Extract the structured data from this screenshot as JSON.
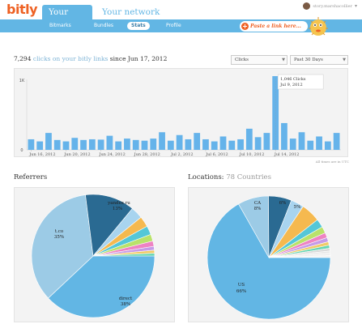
{
  "header": {
    "logo": "bitly",
    "tabs": [
      {
        "label": "Your stuff",
        "active": true
      },
      {
        "label": "Your network",
        "active": false
      }
    ],
    "user": "story.marshacollier"
  },
  "subnav": {
    "items": [
      {
        "label": "Bitmarks",
        "active": false
      },
      {
        "label": "Bundles",
        "active": false
      },
      {
        "label": "Stats",
        "active": true
      },
      {
        "label": "Profile",
        "active": false
      }
    ],
    "paste_label": "Paste a link here..."
  },
  "stats": {
    "count": "7,294",
    "word_clicks": "clicks",
    "mid": "on your bitly links",
    "since_label": "since Jun 17, 2012",
    "metric_select": "Clicks",
    "range_select": "Past 30 Days",
    "timezone_note": "All times are in UTC"
  },
  "colors": {
    "brand_orange": "#ee6123",
    "accent_blue": "#62b6e4",
    "bar_blue": "#65b3ea",
    "panel_bg": "#f3f3f3"
  },
  "chart_data": [
    {
      "type": "bar",
      "title": "",
      "ylabel": "",
      "xlabel": "",
      "ylim": [
        0,
        1000
      ],
      "y_ticks": [
        "0",
        "1K"
      ],
      "x_tick_labels": [
        "Jun 16, 2012",
        "Jun 20, 2012",
        "Jun 24, 2012",
        "Jun 28, 2012",
        "Jul 2, 2012",
        "Jul 6, 2012",
        "Jul 10, 2012",
        "Jul 14, 2012"
      ],
      "values": [
        150,
        120,
        240,
        140,
        120,
        170,
        140,
        150,
        145,
        200,
        120,
        160,
        140,
        130,
        160,
        250,
        130,
        210,
        150,
        240,
        150,
        120,
        190,
        130,
        150,
        300,
        180,
        240,
        1046,
        380,
        160,
        250,
        130,
        190,
        120,
        240
      ],
      "tooltip": {
        "value": "1,046 Clicks",
        "date": "Jul 9, 2012",
        "index": 28
      }
    },
    {
      "type": "pie",
      "title": "Referrers",
      "labels": [
        "direct",
        "t.co",
        "yandex.ru"
      ],
      "label_percents": [
        "38%",
        "35%",
        "13%"
      ],
      "slices": [
        {
          "label": "direct",
          "value": 38,
          "color": "#62b6e4"
        },
        {
          "label": "t.co",
          "value": 35,
          "color": "#9ccbe6"
        },
        {
          "label": "yandex.ru",
          "value": 13,
          "color": "#2a6a92"
        },
        {
          "label": "",
          "value": 3.2,
          "color": "#a8d4ef"
        },
        {
          "label": "",
          "value": 2.8,
          "color": "#f5b94f"
        },
        {
          "label": "",
          "value": 2.3,
          "color": "#54c7d8"
        },
        {
          "label": "",
          "value": 1.8,
          "color": "#b9e26a"
        },
        {
          "label": "",
          "value": 1.4,
          "color": "#ee83c3"
        },
        {
          "label": "",
          "value": 1.0,
          "color": "#c59be8"
        },
        {
          "label": "",
          "value": 0.8,
          "color": "#f0cb69"
        },
        {
          "label": "",
          "value": 0.7,
          "color": "#66d6b3"
        }
      ]
    },
    {
      "type": "pie",
      "title": "Locations:",
      "subtitle": "78 Countries",
      "labels": [
        "US",
        "CA"
      ],
      "label_percents": [
        "66%",
        "8%",
        "6%",
        "5%"
      ],
      "slices": [
        {
          "label": "US",
          "value": 66,
          "color": "#62b6e4"
        },
        {
          "label": "CA",
          "value": 8,
          "color": "#9ccbe6"
        },
        {
          "label": "",
          "value": 6,
          "color": "#2a6a92"
        },
        {
          "label": "",
          "value": 3.4,
          "color": "#a8d4ef"
        },
        {
          "label": "",
          "value": 5,
          "color": "#f5b94f"
        },
        {
          "label": "",
          "value": 2.2,
          "color": "#54c7d8"
        },
        {
          "label": "",
          "value": 1.7,
          "color": "#b9e26a"
        },
        {
          "label": "",
          "value": 1.3,
          "color": "#ee83c3"
        },
        {
          "label": "",
          "value": 1.1,
          "color": "#c59be8"
        },
        {
          "label": "",
          "value": 0.9,
          "color": "#f0cb69"
        },
        {
          "label": "",
          "value": 0.8,
          "color": "#66d6b3"
        },
        {
          "label": "",
          "value": 0.7,
          "color": "#d9d9d9"
        },
        {
          "label": "",
          "value": 0.6,
          "color": "#e8e8e8"
        },
        {
          "label": "",
          "value": 0.6,
          "color": "#eeeeee"
        },
        {
          "label": "",
          "value": 0.5,
          "color": "#f2f2f2"
        }
      ]
    }
  ]
}
